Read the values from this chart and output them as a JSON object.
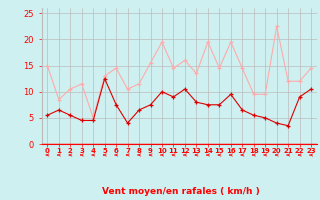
{
  "x": [
    0,
    1,
    2,
    3,
    4,
    5,
    6,
    7,
    8,
    9,
    10,
    11,
    12,
    13,
    14,
    15,
    16,
    17,
    18,
    19,
    20,
    21,
    22,
    23
  ],
  "vent_moyen": [
    5.5,
    6.5,
    5.5,
    4.5,
    4.5,
    12.5,
    7.5,
    4.0,
    6.5,
    7.5,
    10.0,
    9.0,
    10.5,
    8.0,
    7.5,
    7.5,
    9.5,
    6.5,
    5.5,
    5.0,
    4.0,
    3.5,
    9.0,
    10.5
  ],
  "rafales": [
    15.0,
    8.5,
    10.5,
    11.5,
    5.0,
    13.0,
    14.5,
    10.5,
    11.5,
    15.5,
    19.5,
    14.5,
    16.0,
    13.5,
    19.5,
    14.5,
    19.5,
    14.5,
    9.5,
    9.5,
    22.5,
    12.0,
    12.0,
    14.5
  ],
  "bg_color": "#cff0f0",
  "grid_color": "#bbbbbb",
  "line_color_moyen": "#dd0000",
  "line_color_rafales": "#ffaaaa",
  "xlabel": "Vent moyen/en rafales ( km/h )",
  "yticks": [
    0,
    5,
    10,
    15,
    20,
    25
  ],
  "xlim": [
    -0.5,
    23.5
  ],
  "ylim": [
    0,
    26
  ]
}
